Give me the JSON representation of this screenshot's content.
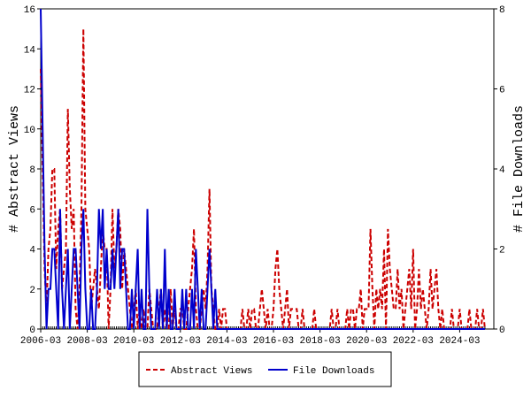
{
  "chart_data": {
    "type": "line",
    "x": [
      "2006-03",
      "2006-04",
      "2006-05",
      "2006-06",
      "2006-07",
      "2006-08",
      "2006-09",
      "2006-10",
      "2006-11",
      "2006-12",
      "2007-01",
      "2007-02",
      "2007-03",
      "2007-04",
      "2007-05",
      "2007-06",
      "2007-07",
      "2007-08",
      "2007-09",
      "2007-10",
      "2007-11",
      "2007-12",
      "2008-01",
      "2008-02",
      "2008-03",
      "2008-04",
      "2008-05",
      "2008-06",
      "2008-07",
      "2008-08",
      "2008-09",
      "2008-10",
      "2008-11",
      "2008-12",
      "2009-01",
      "2009-02",
      "2009-03",
      "2009-04",
      "2009-05",
      "2009-06",
      "2009-07",
      "2009-08",
      "2009-09",
      "2009-10",
      "2009-11",
      "2009-12",
      "2010-01",
      "2010-02",
      "2010-03",
      "2010-04",
      "2010-05",
      "2010-06",
      "2010-07",
      "2010-08",
      "2010-09",
      "2010-10",
      "2010-11",
      "2010-12",
      "2011-01",
      "2011-02",
      "2011-03",
      "2011-04",
      "2011-05",
      "2011-06",
      "2011-07",
      "2011-08",
      "2011-09",
      "2011-10",
      "2011-11",
      "2011-12",
      "2012-01",
      "2012-02",
      "2012-03",
      "2012-04",
      "2012-05",
      "2012-06",
      "2012-07",
      "2012-08",
      "2012-09",
      "2012-10",
      "2012-11",
      "2012-12",
      "2013-01",
      "2013-02",
      "2013-03",
      "2013-04",
      "2013-05",
      "2013-06",
      "2013-07",
      "2013-08",
      "2013-09",
      "2013-10",
      "2013-11",
      "2013-12",
      "2014-01",
      "2014-02",
      "2014-03",
      "2014-04",
      "2014-05",
      "2014-06",
      "2014-07",
      "2014-08",
      "2014-09",
      "2014-10",
      "2014-11",
      "2014-12",
      "2015-01",
      "2015-02",
      "2015-03",
      "2015-04",
      "2015-05",
      "2015-06",
      "2015-07",
      "2015-08",
      "2015-09",
      "2015-10",
      "2015-11",
      "2015-12",
      "2016-01",
      "2016-02",
      "2016-03",
      "2016-04",
      "2016-05",
      "2016-06",
      "2016-07",
      "2016-08",
      "2016-09",
      "2016-10",
      "2016-11",
      "2016-12",
      "2017-01",
      "2017-02",
      "2017-03",
      "2017-04",
      "2017-05",
      "2017-06",
      "2017-07",
      "2017-08",
      "2017-09",
      "2017-10",
      "2017-11",
      "2017-12",
      "2018-01",
      "2018-02",
      "2018-03",
      "2018-04",
      "2018-05",
      "2018-06",
      "2018-07",
      "2018-08",
      "2018-09",
      "2018-10",
      "2018-11",
      "2018-12",
      "2019-01",
      "2019-02",
      "2019-03",
      "2019-04",
      "2019-05",
      "2019-06",
      "2019-07",
      "2019-08",
      "2019-09",
      "2019-10",
      "2019-11",
      "2019-12",
      "2020-01",
      "2020-02",
      "2020-03",
      "2020-04",
      "2020-05",
      "2020-06",
      "2020-07",
      "2020-08",
      "2020-09",
      "2020-10",
      "2020-11",
      "2020-12",
      "2021-01",
      "2021-02",
      "2021-03",
      "2021-04",
      "2021-05",
      "2021-06",
      "2021-07",
      "2021-08",
      "2021-09",
      "2021-10",
      "2021-11",
      "2021-12",
      "2022-01",
      "2022-02",
      "2022-03",
      "2022-04",
      "2022-05",
      "2022-06",
      "2022-07",
      "2022-08",
      "2022-09",
      "2022-10",
      "2022-11",
      "2022-12",
      "2023-01",
      "2023-02",
      "2023-03",
      "2023-04",
      "2023-05",
      "2023-06",
      "2023-07",
      "2023-08",
      "2023-09",
      "2023-10",
      "2023-11",
      "2023-12",
      "2024-01",
      "2024-02",
      "2024-03",
      "2024-04",
      "2024-05",
      "2024-06",
      "2024-07",
      "2024-08",
      "2024-09",
      "2024-10",
      "2024-11",
      "2024-12",
      "2025-01",
      "2025-02",
      "2025-03",
      "2025-04"
    ],
    "xticks": [
      "2006-03",
      "2008-03",
      "2010-03",
      "2012-03",
      "2014-03",
      "2016-03",
      "2018-03",
      "2020-03",
      "2022-03",
      "2024-03"
    ],
    "ylabel": "# Abstract Views",
    "y2label": "# File Downloads",
    "ylim": [
      0,
      16
    ],
    "yticks": [
      0,
      2,
      4,
      6,
      8,
      10,
      12,
      14,
      16
    ],
    "y2lim": [
      0,
      8
    ],
    "y2ticks": [
      0,
      2,
      4,
      6,
      8
    ],
    "legend": "bottom",
    "series": [
      {
        "name": "Abstract Views",
        "color": "#cc0000",
        "dash": true,
        "values": [
          13,
          8,
          3,
          1,
          4,
          5,
          8,
          8,
          3,
          5,
          6,
          2,
          3,
          4,
          11,
          7,
          5,
          6,
          1,
          0,
          2,
          6,
          15,
          6,
          5,
          4,
          1,
          2,
          3,
          2,
          1,
          3,
          5,
          4,
          4,
          0,
          2,
          6,
          3,
          4,
          6,
          5,
          2,
          4,
          3,
          2,
          1,
          0,
          1,
          2,
          0,
          1,
          0,
          1,
          0,
          0,
          2,
          1,
          0,
          0,
          0,
          1,
          2,
          0,
          1,
          0,
          0,
          2,
          0,
          1,
          0,
          0,
          1,
          1,
          0,
          0,
          1,
          2,
          3,
          5,
          1,
          0,
          0,
          1,
          2,
          1,
          3,
          7,
          2,
          1,
          0,
          0,
          1,
          0,
          1,
          1,
          0,
          0,
          0,
          0,
          0,
          0,
          0,
          0,
          1,
          0,
          0,
          1,
          0,
          1,
          1,
          0,
          0,
          1,
          2,
          1,
          0,
          1,
          0,
          0,
          1,
          3,
          4,
          2,
          1,
          0,
          1,
          2,
          0,
          1,
          1,
          1,
          1,
          0,
          0,
          1,
          0,
          0,
          0,
          0,
          0,
          1,
          0,
          0,
          0,
          0,
          0,
          0,
          0,
          0,
          1,
          0,
          0,
          1,
          0,
          0,
          0,
          0,
          1,
          0,
          1,
          1,
          0,
          1,
          1,
          2,
          0,
          1,
          1,
          1,
          5,
          2,
          0,
          2,
          1,
          2,
          1,
          4,
          0,
          5,
          3,
          2,
          1,
          1,
          3,
          1,
          2,
          0,
          1,
          2,
          3,
          1,
          4,
          0,
          1,
          3,
          1,
          2,
          1,
          0,
          1,
          3,
          1,
          2,
          3,
          1,
          0,
          1,
          0,
          0,
          0,
          0,
          1,
          0,
          0,
          0,
          1,
          0,
          0,
          0,
          0,
          1,
          0,
          0,
          0,
          1,
          0,
          0,
          1,
          0
        ]
      },
      {
        "name": "File Downloads",
        "color": "#0000cc",
        "axis": "y2",
        "values": [
          8,
          5,
          2,
          0,
          1,
          1,
          2,
          2,
          1,
          0,
          3,
          1,
          0,
          1,
          2,
          0,
          1,
          2,
          2,
          1,
          0,
          2,
          3,
          1,
          0,
          0,
          1,
          0,
          0,
          1,
          3,
          2,
          3,
          1,
          2,
          1,
          1,
          2,
          1,
          2,
          3,
          1,
          2,
          2,
          1,
          0,
          0,
          1,
          0,
          1,
          2,
          0,
          1,
          0,
          0,
          3,
          1,
          0,
          0,
          0,
          1,
          0,
          1,
          0,
          2,
          0,
          1,
          0,
          0,
          1,
          0,
          0,
          0,
          1,
          0,
          1,
          0,
          0,
          1,
          0,
          2,
          1,
          0,
          1,
          0,
          0,
          1,
          2,
          1,
          0,
          1,
          0,
          0,
          0,
          0,
          0,
          0,
          0,
          0,
          0,
          0,
          0,
          0,
          0,
          0,
          0,
          0,
          0,
          0,
          0,
          0,
          0,
          0,
          0,
          0,
          0,
          0,
          0,
          0,
          0,
          0,
          0,
          0,
          0,
          0,
          0,
          0,
          0,
          0,
          0,
          0,
          0,
          0,
          0,
          0,
          0,
          0,
          0,
          0,
          0,
          0,
          0,
          0,
          0,
          0,
          0,
          0,
          0,
          0,
          0,
          0,
          0,
          0,
          0,
          0,
          0,
          0,
          0,
          0,
          0,
          0,
          0,
          0,
          0,
          0,
          0,
          0,
          0,
          0,
          0,
          0,
          0,
          0,
          0,
          0,
          0,
          0,
          0,
          0,
          0,
          0,
          0,
          0,
          0,
          0,
          0,
          0,
          0,
          0,
          0,
          0,
          0,
          0,
          0,
          0,
          0,
          0,
          0,
          0,
          0,
          0,
          0,
          0,
          0,
          0,
          0,
          0,
          0,
          0,
          0,
          0,
          0,
          0,
          0,
          0,
          0,
          0,
          0,
          0,
          0,
          0,
          0,
          0,
          0,
          0,
          0,
          0,
          0,
          0,
          0
        ]
      }
    ]
  }
}
